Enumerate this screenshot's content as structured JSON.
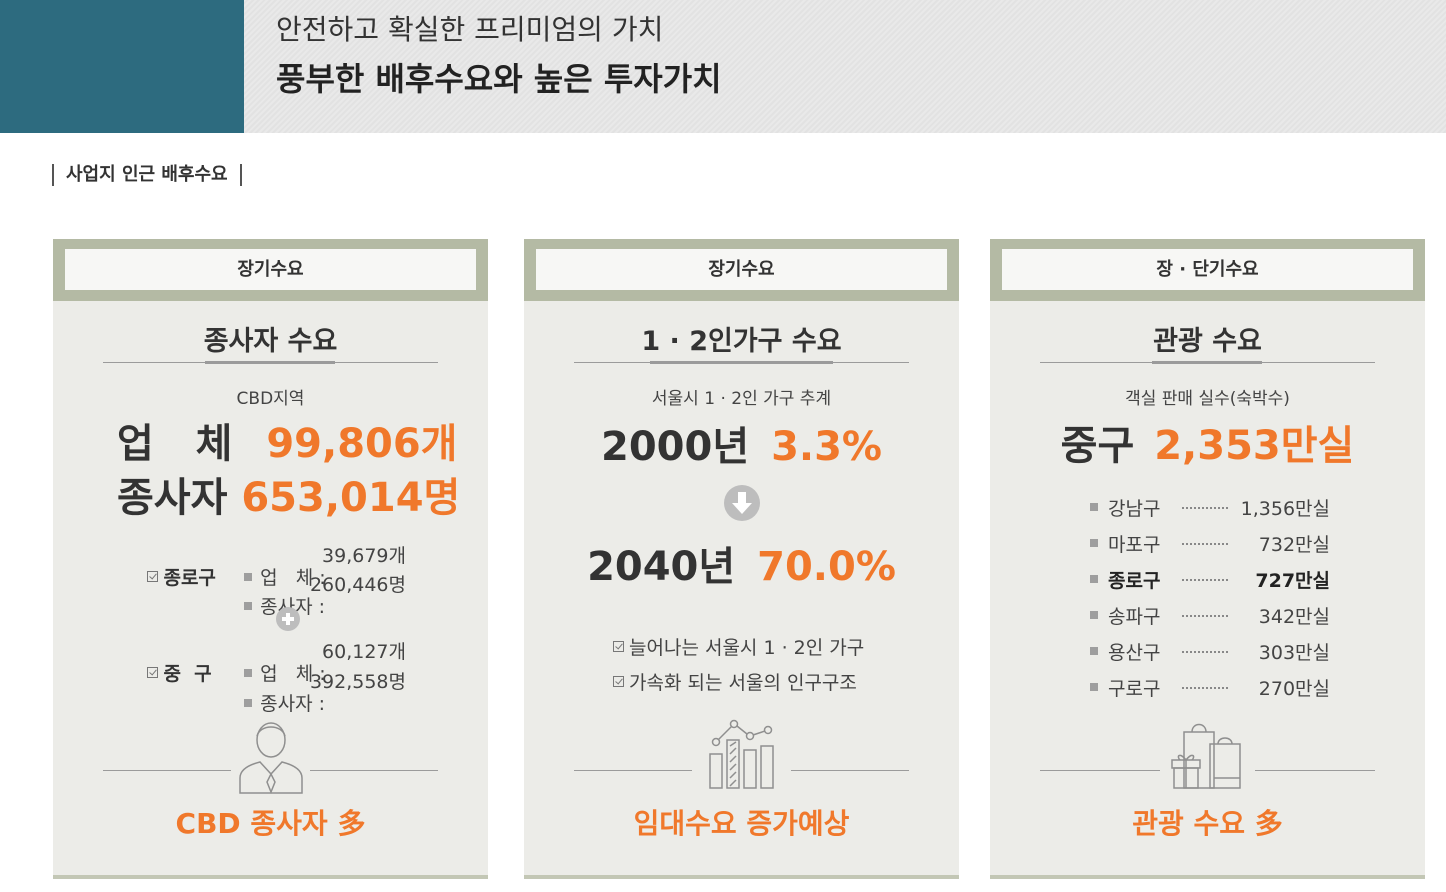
{
  "header": {
    "subtitle": "안전하고 확실한 프리미엄의 가치",
    "title": "풍부한 배후수요와 높은 투자가치",
    "accent_color": "#2d6b7f"
  },
  "section_label": "사업지 인근 배후수요",
  "cards": [
    {
      "tag": "장기수요",
      "title": "종사자 수요",
      "desc": "CBD지역",
      "stats": [
        {
          "label": "업   체",
          "value": "99,806개"
        },
        {
          "label": "종사자",
          "value": "653,014명"
        }
      ],
      "districts": [
        {
          "name": "종로구",
          "biz_label": "업   체 :",
          "biz_value": "39,679개",
          "emp_label": "종사자 :",
          "emp_value": "260,446명"
        },
        {
          "name": "중  구",
          "biz_label": "업   체 :",
          "biz_value": "60,127개",
          "emp_label": "종사자 :",
          "emp_value": "392,558명"
        }
      ],
      "plus_icon": "plus-circle-icon",
      "icon": "office-worker-icon",
      "footer": "CBD 종사자 多"
    },
    {
      "tag": "장기수요",
      "title": "1 · 2인가구 수요",
      "desc": "서울시 1 · 2인 가구 추계",
      "stats": [
        {
          "label": "2000년",
          "value": "3.3%"
        },
        {
          "label": "2040년",
          "value": "70.0%"
        }
      ],
      "arrow_icon": "arrow-down-circle-icon",
      "checks": [
        "늘어나는 서울시 1 · 2인 가구",
        "가속화 되는 서울의 인구구조"
      ],
      "icon": "growth-chart-icon",
      "footer": "임대수요 증가예상"
    },
    {
      "tag": "장 · 단기수요",
      "title": "관광 수요",
      "desc": "객실 판매 실수(숙박수)",
      "stats": [
        {
          "label": "중구",
          "value": "2,353만실"
        }
      ],
      "districts": [
        {
          "name": "강남구",
          "value": "1,356만실"
        },
        {
          "name": "마포구",
          "value": "732만실"
        },
        {
          "name": "종로구",
          "value": "727만실"
        },
        {
          "name": "송파구",
          "value": "342만실"
        },
        {
          "name": "용산구",
          "value": "303만실"
        },
        {
          "name": "구로구",
          "value": "270만실"
        }
      ],
      "icon": "shopping-bag-gift-icon",
      "footer": "관광 수요 多"
    }
  ],
  "colors": {
    "highlight": "#f0782b",
    "card_bg": "#ecece8",
    "card_band": "#b4baa4"
  }
}
